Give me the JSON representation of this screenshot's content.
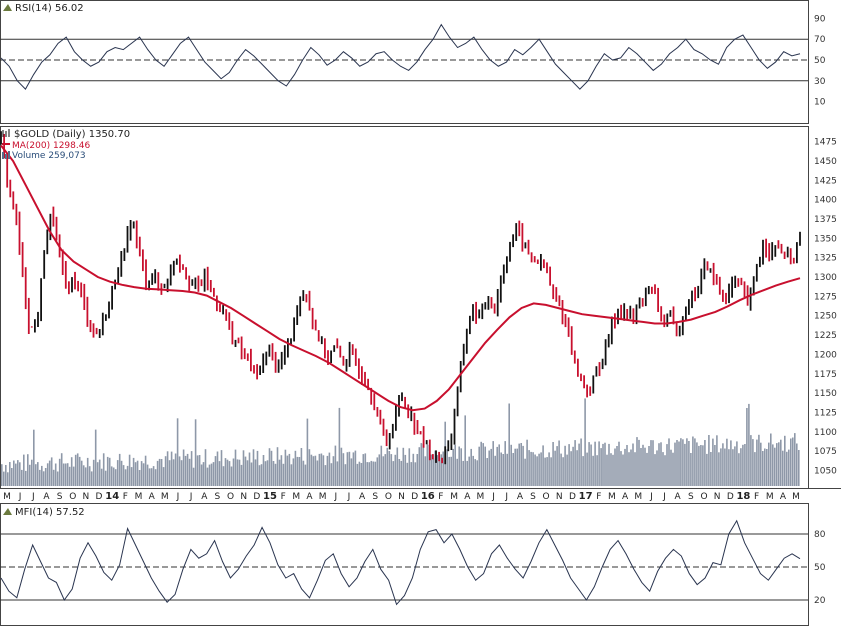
{
  "chart_data": [
    {
      "type": "line",
      "title": "RSI(14) 56.02",
      "indicator": "RSI",
      "period": 14,
      "last_value": 56.02,
      "ylim": [
        0,
        100
      ],
      "yticks": [
        "90",
        "70",
        "50",
        "30",
        "10"
      ],
      "reference_lines": [
        70,
        50,
        30
      ],
      "series": [
        {
          "name": "RSI(14)",
          "color": "#2a3550",
          "values": [
            52,
            44,
            30,
            22,
            36,
            48,
            55,
            66,
            72,
            58,
            50,
            44,
            48,
            58,
            62,
            60,
            66,
            72,
            60,
            50,
            44,
            55,
            66,
            72,
            60,
            48,
            40,
            32,
            38,
            50,
            60,
            54,
            46,
            38,
            30,
            25,
            36,
            50,
            62,
            55,
            45,
            50,
            58,
            52,
            44,
            48,
            56,
            58,
            50,
            44,
            40,
            48,
            60,
            70,
            84,
            72,
            62,
            66,
            72,
            60,
            50,
            44,
            48,
            60,
            55,
            62,
            70,
            58,
            46,
            38,
            30,
            22,
            30,
            44,
            56,
            50,
            52,
            62,
            56,
            48,
            40,
            46,
            56,
            62,
            70,
            60,
            56,
            50,
            46,
            62,
            70,
            74,
            62,
            50,
            42,
            48,
            58,
            54,
            56.02
          ]
        }
      ]
    },
    {
      "type": "line",
      "title": "$GOLD (Daily) 1350.70",
      "symbol": "$GOLD",
      "period": "Daily",
      "last_close": 1350.7,
      "legend": [
        "MA(200) 1298.46",
        "Volume 259,073"
      ],
      "ylim": [
        1030,
        1490
      ],
      "yticks": [
        "1475",
        "1450",
        "1425",
        "1400",
        "1375",
        "1350",
        "1325",
        "1300",
        "1275",
        "1250",
        "1225",
        "1200",
        "1175",
        "1150",
        "1125",
        "1100",
        "1075",
        "1050"
      ],
      "x_tick_labels": [
        "M",
        "J",
        "J",
        "A",
        "S",
        "O",
        "N",
        "D",
        "14",
        "F",
        "M",
        "A",
        "M",
        "J",
        "J",
        "A",
        "S",
        "O",
        "N",
        "D",
        "15",
        "F",
        "M",
        "A",
        "M",
        "J",
        "J",
        "A",
        "S",
        "O",
        "N",
        "D",
        "16",
        "F",
        "M",
        "A",
        "M",
        "J",
        "J",
        "A",
        "S",
        "O",
        "N",
        "D",
        "17",
        "F",
        "M",
        "A",
        "M",
        "J",
        "J",
        "A",
        "S",
        "O",
        "N",
        "D",
        "18",
        "F",
        "M",
        "A",
        "M"
      ],
      "x_year_labels": [
        "14",
        "15",
        "16",
        "17",
        "18"
      ],
      "x_start": "2013-05",
      "x_end": "2018-05",
      "series": [
        {
          "name": "$GOLD",
          "color": "#111111",
          "up_color": "#111111",
          "down_color": "#c8102e",
          "values": [
            1475,
            1420,
            1380,
            1300,
            1230,
            1240,
            1340,
            1385,
            1330,
            1280,
            1300,
            1280,
            1245,
            1225,
            1240,
            1270,
            1310,
            1330,
            1380,
            1330,
            1295,
            1300,
            1285,
            1295,
            1330,
            1315,
            1295,
            1285,
            1300,
            1280,
            1265,
            1245,
            1220,
            1205,
            1195,
            1170,
            1190,
            1210,
            1180,
            1200,
            1225,
            1275,
            1280,
            1240,
            1215,
            1195,
            1210,
            1190,
            1200,
            1185,
            1170,
            1150,
            1115,
            1085,
            1110,
            1150,
            1130,
            1110,
            1090,
            1075,
            1065,
            1070,
            1095,
            1160,
            1230,
            1260,
            1245,
            1275,
            1260,
            1305,
            1340,
            1365,
            1340,
            1325,
            1320,
            1310,
            1275,
            1260,
            1235,
            1185,
            1165,
            1150,
            1180,
            1200,
            1235,
            1260,
            1255,
            1245,
            1270,
            1285,
            1275,
            1245,
            1250,
            1225,
            1255,
            1275,
            1285,
            1320,
            1300,
            1280,
            1275,
            1295,
            1285,
            1260,
            1315,
            1345,
            1330,
            1340,
            1325,
            1322,
            1350.7
          ]
        },
        {
          "name": "MA(200)",
          "color": "#c8102e",
          "values": [
            1470,
            1450,
            1420,
            1390,
            1360,
            1335,
            1320,
            1310,
            1300,
            1294,
            1290,
            1287,
            1285,
            1284,
            1283,
            1282,
            1280,
            1276,
            1268,
            1260,
            1250,
            1240,
            1230,
            1220,
            1212,
            1205,
            1198,
            1190,
            1180,
            1170,
            1160,
            1150,
            1140,
            1132,
            1128,
            1130,
            1140,
            1155,
            1175,
            1195,
            1215,
            1232,
            1248,
            1260,
            1266,
            1264,
            1260,
            1256,
            1252,
            1250,
            1248,
            1246,
            1244,
            1242,
            1240,
            1240,
            1242,
            1245,
            1250,
            1255,
            1262,
            1270,
            1277,
            1283,
            1289,
            1294,
            1298.46
          ]
        },
        {
          "name": "Volume",
          "color": "#8e98a8",
          "last_value": 259073
        }
      ]
    },
    {
      "type": "line",
      "title": "MFI(14) 57.52",
      "indicator": "MFI",
      "period": 14,
      "last_value": 57.52,
      "ylim": [
        0,
        100
      ],
      "yticks": [
        "80",
        "50",
        "20"
      ],
      "reference_lines": [
        80,
        50,
        20
      ],
      "series": [
        {
          "name": "MFI(14)",
          "color": "#2a3550",
          "values": [
            40,
            28,
            22,
            48,
            70,
            55,
            40,
            36,
            20,
            30,
            58,
            72,
            60,
            45,
            38,
            52,
            85,
            70,
            55,
            40,
            28,
            18,
            25,
            48,
            66,
            58,
            62,
            74,
            55,
            40,
            48,
            60,
            70,
            86,
            72,
            52,
            40,
            44,
            30,
            22,
            38,
            56,
            62,
            44,
            32,
            40,
            55,
            66,
            48,
            38,
            16,
            24,
            40,
            66,
            82,
            84,
            72,
            80,
            66,
            50,
            38,
            44,
            62,
            70,
            58,
            48,
            40,
            55,
            72,
            84,
            70,
            56,
            40,
            30,
            20,
            32,
            50,
            66,
            74,
            62,
            48,
            36,
            28,
            46,
            58,
            66,
            60,
            44,
            34,
            40,
            54,
            52,
            80,
            92,
            72,
            58,
            44,
            38,
            48,
            58,
            62,
            57.52
          ]
        }
      ]
    }
  ]
}
